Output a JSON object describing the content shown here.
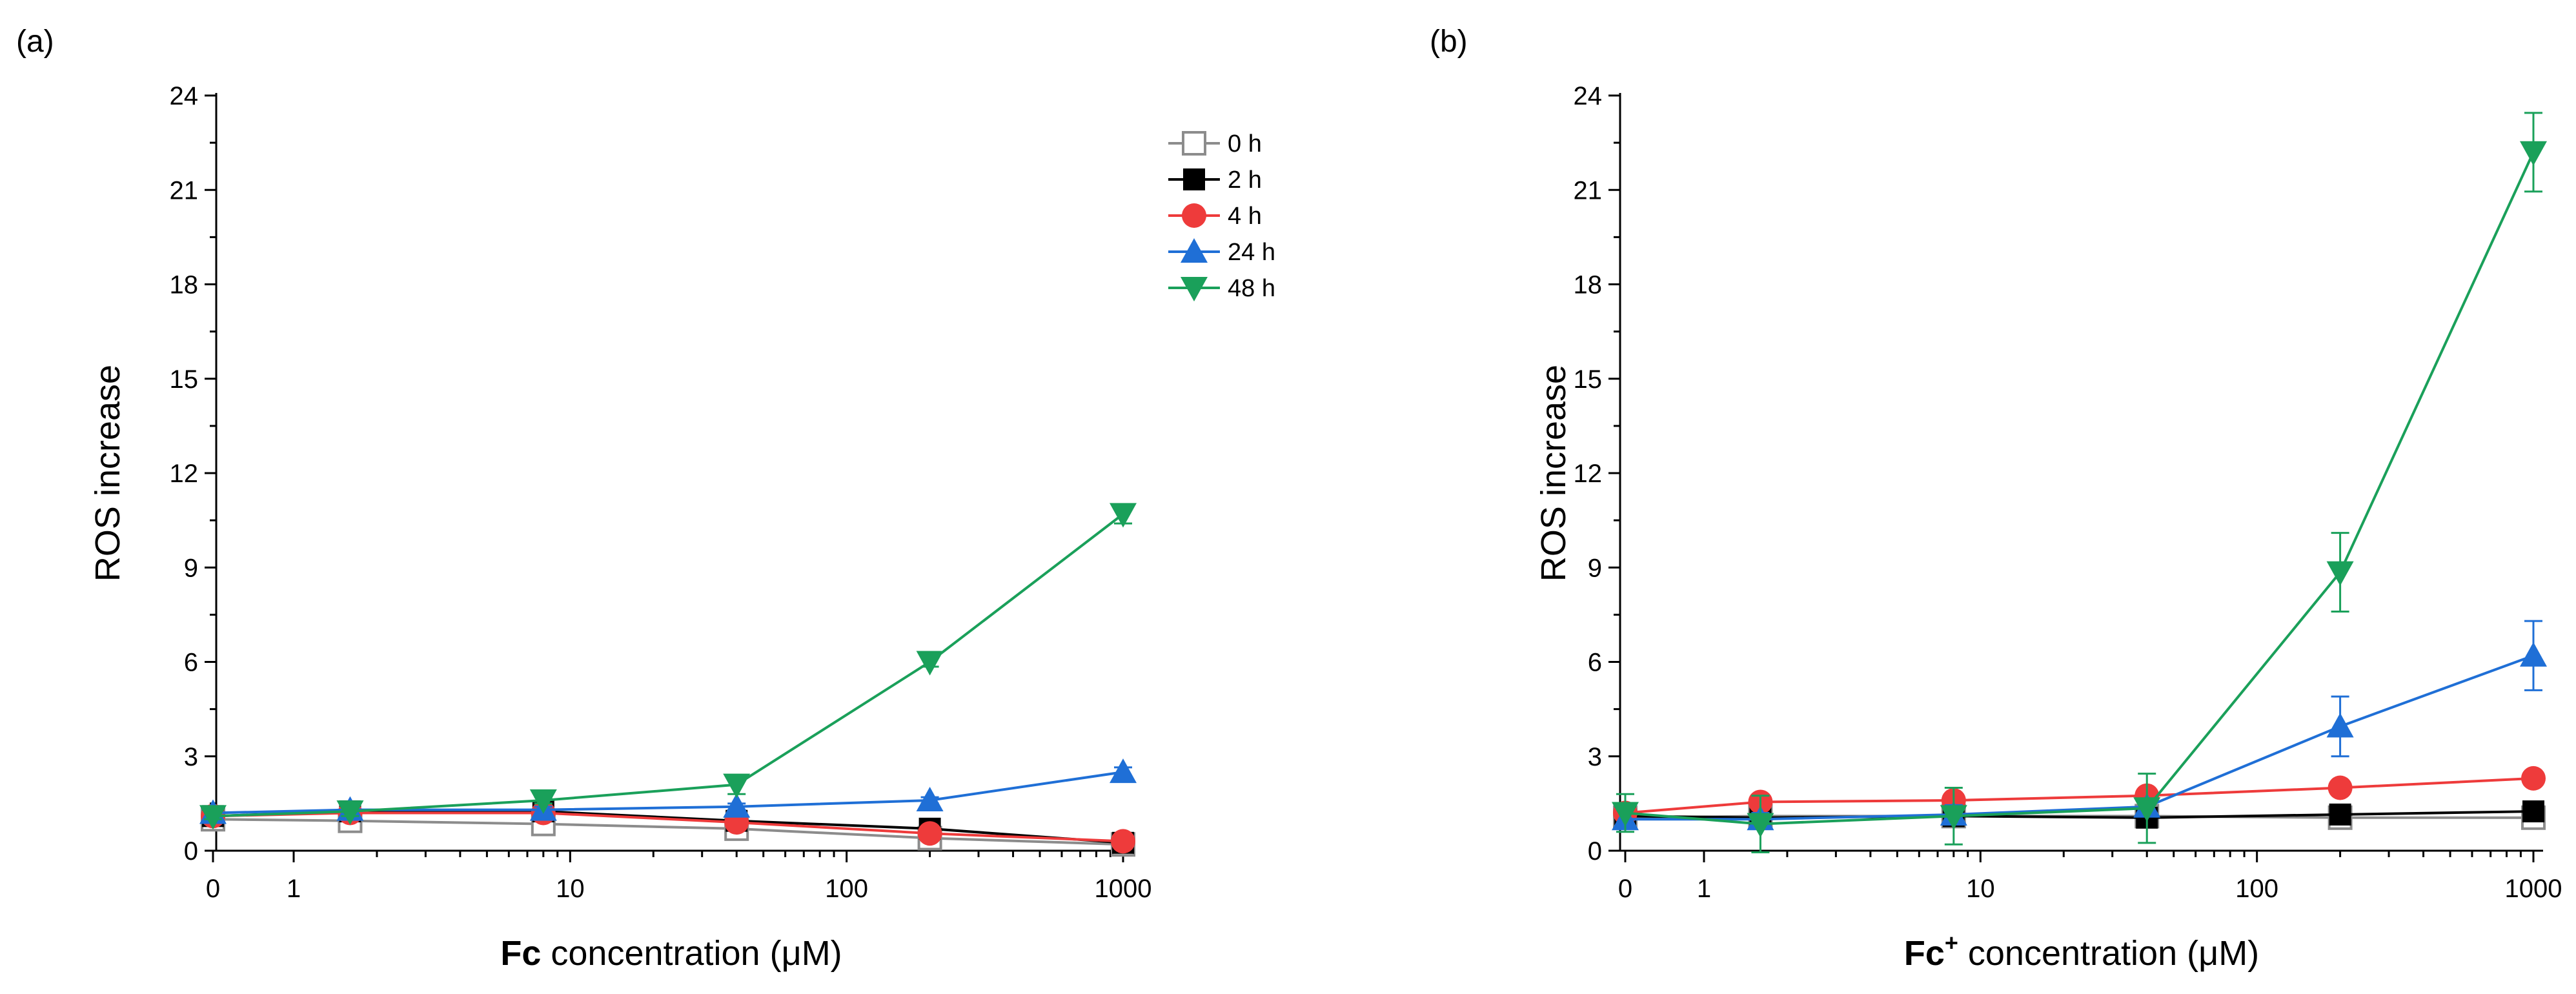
{
  "chart_data": [
    {
      "type": "line",
      "panel_label": "(a)",
      "xlabel_bold": "Fc",
      "xlabel_sup": "",
      "xlabel_rest": " concentration (μM)",
      "ylabel": "ROS increase",
      "xscale": "log-with-zero",
      "ylim": [
        0,
        24
      ],
      "yticks": [
        "0",
        "3",
        "6",
        "9",
        "12",
        "15",
        "18",
        "21",
        "24"
      ],
      "xticks": [
        "0",
        "1",
        "10",
        "100",
        "1000"
      ],
      "x": [
        0,
        1.6,
        8,
        40,
        200,
        1000
      ],
      "legend_position": "top-right",
      "series": [
        {
          "name": "0 h",
          "color": "#8c8c8c",
          "marker": "square-open",
          "values": [
            1.0,
            0.95,
            0.85,
            0.7,
            0.4,
            0.2
          ],
          "errors": [
            0.1,
            0.1,
            0.1,
            0.1,
            0.1,
            0.05
          ]
        },
        {
          "name": "2 h",
          "color": "#000000",
          "marker": "square",
          "values": [
            1.1,
            1.25,
            1.25,
            0.95,
            0.7,
            0.25
          ],
          "errors": [
            0.1,
            0.1,
            0.1,
            0.1,
            0.1,
            0.05
          ]
        },
        {
          "name": "4 h",
          "color": "#ee3b3b",
          "marker": "circle",
          "values": [
            1.1,
            1.2,
            1.2,
            0.9,
            0.55,
            0.3
          ],
          "errors": [
            0.1,
            0.1,
            0.1,
            0.1,
            0.1,
            0.05
          ]
        },
        {
          "name": "24 h",
          "color": "#1f6fd6",
          "marker": "triangle-up",
          "values": [
            1.2,
            1.3,
            1.3,
            1.4,
            1.6,
            2.5
          ],
          "errors": [
            0.1,
            0.1,
            0.1,
            0.1,
            0.1,
            0.15
          ]
        },
        {
          "name": "48 h",
          "color": "#1aa05a",
          "marker": "triangle-down",
          "values": [
            1.1,
            1.25,
            1.6,
            2.1,
            6.0,
            10.7
          ],
          "errors": [
            0.1,
            0.15,
            0.1,
            0.3,
            0.15,
            0.3
          ]
        }
      ]
    },
    {
      "type": "line",
      "panel_label": "(b)",
      "xlabel_bold": "Fc",
      "xlabel_sup": "+",
      "xlabel_rest": " concentration (μM)",
      "ylabel": "ROS increase",
      "xscale": "log-with-zero",
      "ylim": [
        0,
        24
      ],
      "yticks": [
        "0",
        "3",
        "6",
        "9",
        "12",
        "15",
        "18",
        "21",
        "24"
      ],
      "xticks": [
        "0",
        "1",
        "10",
        "100",
        "1000"
      ],
      "x": [
        0,
        1.6,
        8,
        40,
        200,
        1000
      ],
      "series": [
        {
          "name": "0 h",
          "color": "#8c8c8c",
          "marker": "square-open",
          "values": [
            1.05,
            1.1,
            1.1,
            1.1,
            1.05,
            1.05
          ],
          "errors": [
            0.1,
            0.1,
            0.1,
            0.1,
            0.1,
            0.1
          ]
        },
        {
          "name": "2 h",
          "color": "#000000",
          "marker": "square",
          "values": [
            1.1,
            1.05,
            1.1,
            1.05,
            1.15,
            1.25
          ],
          "errors": [
            0.1,
            0.1,
            0.1,
            0.1,
            0.1,
            0.1
          ]
        },
        {
          "name": "4 h",
          "color": "#ee3b3b",
          "marker": "circle",
          "values": [
            1.2,
            1.55,
            1.6,
            1.75,
            2.0,
            2.3
          ],
          "errors": [
            0.1,
            0.1,
            0.1,
            0.1,
            0.1,
            0.15
          ]
        },
        {
          "name": "24 h",
          "color": "#1f6fd6",
          "marker": "triangle-up",
          "values": [
            1.0,
            1.0,
            1.15,
            1.4,
            3.95,
            6.2
          ],
          "errors": [
            0.3,
            0.2,
            0.3,
            0.2,
            0.95,
            1.1
          ]
        },
        {
          "name": "48 h",
          "color": "#1aa05a",
          "marker": "triangle-down",
          "values": [
            1.2,
            0.85,
            1.1,
            1.35,
            8.85,
            22.2
          ],
          "errors": [
            0.6,
            0.9,
            0.9,
            1.1,
            1.25,
            1.25
          ]
        }
      ]
    }
  ]
}
